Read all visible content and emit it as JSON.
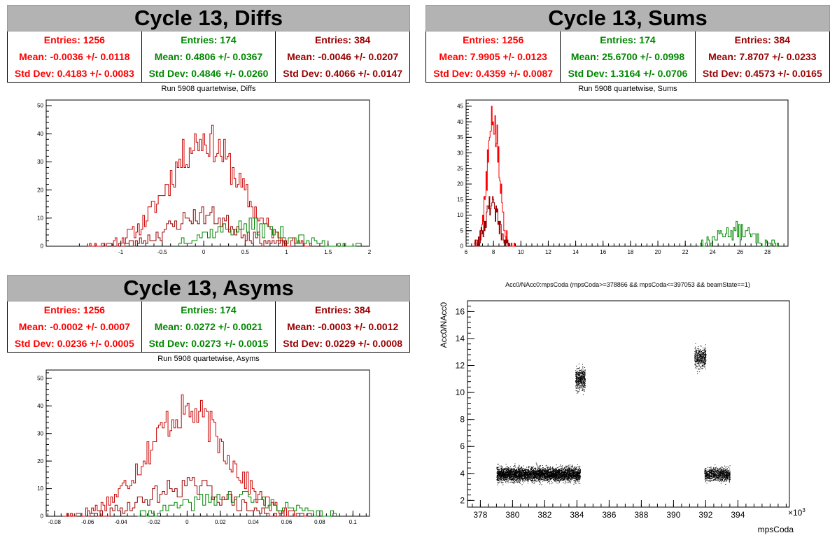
{
  "panels": {
    "diffs": {
      "title": "Cycle 13, Diffs",
      "subtitle": "Run 5908 quartetwise, Diffs",
      "stats": [
        {
          "entries": "Entries: 1256",
          "mean": "Mean: -0.0036 +/- 0.0118",
          "std": "Std Dev: 0.4183 +/- 0.0083",
          "color": "#ff0000"
        },
        {
          "entries": "Entries: 174",
          "mean": "Mean: 0.4806 +/- 0.0367",
          "std": "Std Dev: 0.4846 +/- 0.0260",
          "color": "#008800"
        },
        {
          "entries": "Entries: 384",
          "mean": "Mean: -0.0046 +/- 0.0207",
          "std": "Std Dev: 0.4066 +/- 0.0147",
          "color": "#990000"
        }
      ]
    },
    "sums": {
      "title": "Cycle 13, Sums",
      "subtitle": "Run 5908 quartetwise, Sums",
      "stats": [
        {
          "entries": "Entries: 1256",
          "mean": "Mean: 7.9905 +/- 0.0123",
          "std": "Std Dev: 0.4359 +/- 0.0087",
          "color": "#ff0000"
        },
        {
          "entries": "Entries: 174",
          "mean": "Mean: 25.6700 +/- 0.0998",
          "std": "Std Dev: 1.3164 +/- 0.0706",
          "color": "#008800"
        },
        {
          "entries": "Entries: 384",
          "mean": "Mean: 7.8707 +/- 0.0233",
          "std": "Std Dev: 0.4573 +/- 0.0165",
          "color": "#990000"
        }
      ]
    },
    "asyms": {
      "title": "Cycle 13, Asyms",
      "subtitle": "Run 5908 quartetwise, Asyms",
      "stats": [
        {
          "entries": "Entries: 1256",
          "mean": "Mean: -0.0002 +/- 0.0007",
          "std": "Std Dev: 0.0236 +/- 0.0005",
          "color": "#ff0000"
        },
        {
          "entries": "Entries: 174",
          "mean": "Mean: 0.0272 +/- 0.0021",
          "std": "Std Dev: 0.0273 +/- 0.0015",
          "color": "#008800"
        },
        {
          "entries": "Entries: 384",
          "mean": "Mean: -0.0003 +/- 0.0012",
          "std": "Std Dev: 0.0229 +/- 0.0008",
          "color": "#990000"
        }
      ]
    },
    "scatter": {
      "subtitle": "Acc0/NAcc0:mpsCoda (mpsCoda>=378866 && mpsCoda<=397053 && beamState==1)"
    }
  },
  "chart_data": [
    {
      "id": "diffs",
      "type": "histogram",
      "xlim": [
        -1.9,
        2.0
      ],
      "ylim": [
        0,
        52
      ],
      "xticks": [
        -1,
        -0.5,
        0,
        0.5,
        1,
        1.5,
        2
      ],
      "yticks": [
        0,
        10,
        20,
        30,
        40,
        50
      ],
      "series": [
        {
          "color": "#cc0000",
          "center": 0.0,
          "sigma": 0.42,
          "peak": 38,
          "range": [
            -1.4,
            1.3
          ],
          "bins": 130,
          "seed": 11
        },
        {
          "color": "#990000",
          "center": 0.0,
          "sigma": 0.4,
          "peak": 11,
          "range": [
            -1.0,
            1.0
          ],
          "bins": 80,
          "seed": 23
        },
        {
          "color": "#008800",
          "center": 0.48,
          "sigma": 0.48,
          "peak": 7,
          "range": [
            -0.3,
            1.9
          ],
          "bins": 70,
          "seed": 37
        }
      ]
    },
    {
      "id": "sums",
      "type": "histogram",
      "xlim": [
        6,
        29.5
      ],
      "ylim": [
        0,
        47
      ],
      "xticks": [
        6,
        8,
        10,
        12,
        14,
        16,
        18,
        20,
        22,
        24,
        26,
        28
      ],
      "yticks": [
        0,
        5,
        10,
        15,
        20,
        25,
        30,
        35,
        40,
        45
      ],
      "series": [
        {
          "color": "#ff0000",
          "center": 7.99,
          "sigma": 0.44,
          "peak": 40,
          "range": [
            6.6,
            9.6
          ],
          "bins": 60,
          "seed": 5
        },
        {
          "color": "#990000",
          "center": 7.87,
          "sigma": 0.46,
          "peak": 14,
          "range": [
            6.6,
            9.3
          ],
          "bins": 55,
          "seed": 9
        },
        {
          "color": "#008800",
          "center": 25.67,
          "sigma": 1.32,
          "peak": 5,
          "range": [
            23.0,
            28.8
          ],
          "bins": 60,
          "seed": 13
        }
      ]
    },
    {
      "id": "asyms",
      "type": "histogram",
      "xlim": [
        -0.085,
        0.11
      ],
      "ylim": [
        0,
        53
      ],
      "xticks": [
        -0.08,
        -0.06,
        -0.04,
        -0.02,
        0,
        0.02,
        0.04,
        0.06,
        0.08,
        0.1
      ],
      "yticks": [
        0,
        10,
        20,
        30,
        40,
        50
      ],
      "series": [
        {
          "color": "#cc0000",
          "center": 0.0,
          "sigma": 0.024,
          "peak": 38,
          "range": [
            -0.075,
            0.075
          ],
          "bins": 130,
          "seed": 17
        },
        {
          "color": "#990000",
          "center": 0.0,
          "sigma": 0.023,
          "peak": 11,
          "range": [
            -0.06,
            0.06
          ],
          "bins": 80,
          "seed": 29
        },
        {
          "color": "#008800",
          "center": 0.027,
          "sigma": 0.027,
          "peak": 7,
          "range": [
            -0.03,
            0.09
          ],
          "bins": 70,
          "seed": 41
        }
      ]
    },
    {
      "id": "scatter",
      "type": "scatter",
      "xlabel": "mpsCoda",
      "ylabel": "Acc0/NAcc0",
      "x_exponent": "×10",
      "x_exponent_power": "3",
      "xlim": [
        377.2,
        397.2
      ],
      "ylim": [
        1.5,
        16.8
      ],
      "xticks": [
        378,
        380,
        382,
        384,
        386,
        388,
        390,
        392,
        394
      ],
      "yticks": [
        2,
        4,
        6,
        8,
        10,
        12,
        14,
        16
      ],
      "clusters": [
        {
          "x": [
            379.0,
            384.2
          ],
          "ymean": 3.95,
          "ysd": 0.35,
          "n": 4200
        },
        {
          "x": [
            383.9,
            384.5
          ],
          "ymean": 11.0,
          "ysd": 0.55,
          "n": 450
        },
        {
          "x": [
            391.3,
            392.0
          ],
          "ymean": 12.6,
          "ysd": 0.55,
          "n": 420
        },
        {
          "x": [
            391.9,
            393.5
          ],
          "ymean": 3.95,
          "ysd": 0.35,
          "n": 900
        }
      ]
    }
  ]
}
